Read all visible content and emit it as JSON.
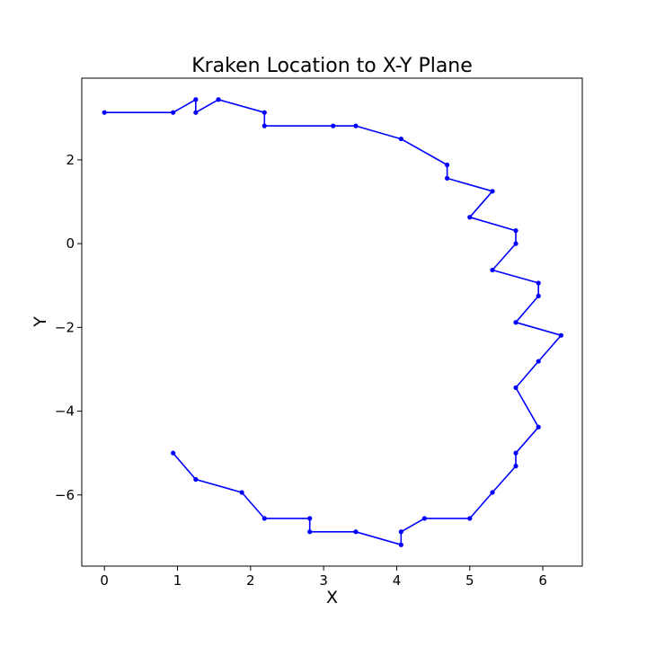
{
  "chart_data": {
    "type": "line",
    "title": "Kraken Location to X-Y Plane",
    "xlabel": "X",
    "ylabel": "Y",
    "xlim": [
      -0.31,
      6.54
    ],
    "ylim": [
      -7.7,
      3.95
    ],
    "xticks": [
      0,
      1,
      2,
      3,
      4,
      5,
      6
    ],
    "yticks": [
      2,
      0,
      -2,
      -4,
      -6
    ],
    "ytick_labels": [
      "2",
      "0",
      "−2",
      "−4",
      "−6"
    ],
    "grid": false,
    "legend": "none",
    "color": "#0000ff",
    "marker": "circle",
    "series": [
      {
        "x": [
          0,
          0.94,
          1.25,
          1.25,
          1.56,
          2.19,
          2.19,
          3.13,
          3.44,
          4.06,
          4.69,
          4.69,
          5.31,
          5.0,
          5.63,
          5.63,
          5.31,
          5.94,
          5.94,
          5.63,
          6.25,
          5.94,
          5.63,
          5.94,
          5.63,
          5.63,
          5.31,
          5.0,
          4.38,
          4.06,
          4.06,
          3.44,
          2.81,
          2.81,
          2.19,
          1.88,
          1.25,
          0.94
        ],
        "y": [
          3.13,
          3.13,
          3.44,
          3.13,
          3.44,
          3.13,
          2.81,
          2.81,
          2.81,
          2.5,
          1.88,
          1.56,
          1.25,
          0.63,
          0.31,
          0.0,
          -0.63,
          -0.94,
          -1.25,
          -1.88,
          -2.19,
          -2.81,
          -3.44,
          -4.38,
          -5.0,
          -5.31,
          -5.94,
          -6.56,
          -6.56,
          -6.88,
          -7.19,
          -6.88,
          -6.88,
          -6.56,
          -6.56,
          -5.94,
          -5.63,
          -5.0
        ]
      }
    ]
  }
}
